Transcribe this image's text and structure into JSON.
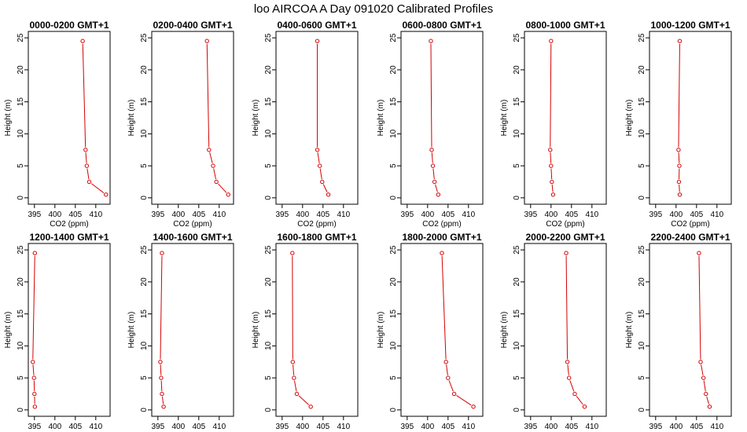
{
  "figure_title": "loo AIRCOA A  Day 091020  Calibrated Profiles",
  "chart_data": {
    "type": "line",
    "xlabel": "CO2 (ppm)",
    "ylabel": "Height (m)",
    "xlim": [
      393.5,
      413.5
    ],
    "ylim": [
      -1,
      26
    ],
    "x_ticks": [
      "395",
      "400",
      "405",
      "410"
    ],
    "y_ticks": [
      "0",
      "5",
      "10",
      "15",
      "20",
      "25"
    ],
    "heights": [
      0.5,
      2.5,
      5,
      7.5,
      24.5
    ],
    "panels": [
      {
        "title": "0000-0200 GMT+1",
        "co2": [
          412.5,
          408.4,
          407.8,
          407.5,
          406.8
        ]
      },
      {
        "title": "0200-0400 GMT+1",
        "co2": [
          412.2,
          409.3,
          408.5,
          407.5,
          407.0
        ]
      },
      {
        "title": "0400-0600 GMT+1",
        "co2": [
          406.3,
          404.8,
          404.2,
          403.6,
          403.6
        ]
      },
      {
        "title": "0600-0800 GMT+1",
        "co2": [
          402.6,
          401.7,
          401.3,
          401.0,
          400.8
        ]
      },
      {
        "title": "0800-1000 GMT+1",
        "co2": [
          400.5,
          400.2,
          400.0,
          399.8,
          400.0
        ]
      },
      {
        "title": "1000-1200 GMT+1",
        "co2": [
          400.9,
          400.7,
          400.8,
          400.6,
          400.9
        ]
      },
      {
        "title": "1200-1400 GMT+1",
        "co2": [
          395.1,
          395.0,
          394.9,
          394.6,
          395.1
        ]
      },
      {
        "title": "1400-1600 GMT+1",
        "co2": [
          396.4,
          396.0,
          395.8,
          395.6,
          396.0
        ]
      },
      {
        "title": "1600-1800 GMT+1",
        "co2": [
          402.0,
          398.6,
          397.9,
          397.6,
          397.5
        ]
      },
      {
        "title": "1800-2000 GMT+1",
        "co2": [
          411.2,
          406.5,
          405.0,
          404.5,
          403.5
        ]
      },
      {
        "title": "2000-2200 GMT+1",
        "co2": [
          408.2,
          405.8,
          404.4,
          404.0,
          403.7
        ]
      },
      {
        "title": "2200-2400 GMT+1",
        "co2": [
          408.2,
          407.3,
          406.7,
          406.0,
          405.6
        ]
      }
    ]
  }
}
